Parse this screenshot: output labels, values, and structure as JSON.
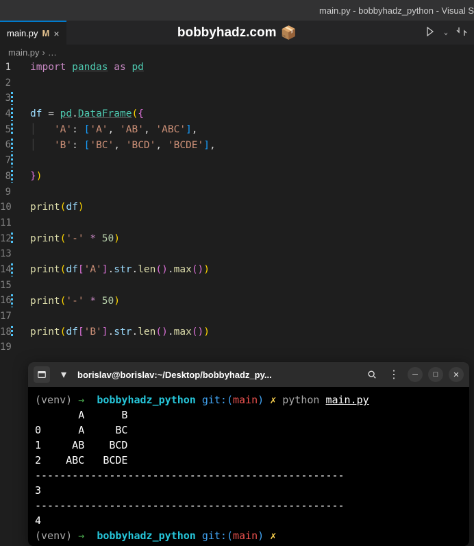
{
  "title_bar": "main.py - bobbyhadz_python - Visual S",
  "tab": {
    "name": "main.py",
    "modified_marker": "M",
    "close": "×"
  },
  "watermark": {
    "text": "bobbyhadz.com",
    "icon": "📦"
  },
  "breadcrumb": {
    "file": "main.py",
    "sep": "›",
    "more": "…"
  },
  "code": {
    "lines": [
      {
        "n": 1,
        "active": true,
        "mod": false
      },
      {
        "n": 2,
        "mod": false
      },
      {
        "n": 3,
        "mod": true
      },
      {
        "n": 4,
        "mod": true
      },
      {
        "n": 5,
        "mod": true
      },
      {
        "n": 6,
        "mod": true
      },
      {
        "n": 7,
        "mod": true
      },
      {
        "n": 8,
        "mod": true
      },
      {
        "n": 9,
        "mod": false
      },
      {
        "n": 10,
        "mod": false
      },
      {
        "n": 11,
        "mod": false
      },
      {
        "n": 12,
        "mod": true
      },
      {
        "n": 13,
        "mod": false
      },
      {
        "n": 14,
        "mod": true
      },
      {
        "n": 15,
        "mod": false
      },
      {
        "n": 16,
        "mod": true
      },
      {
        "n": 17,
        "mod": false
      },
      {
        "n": 18,
        "mod": true
      },
      {
        "n": 19,
        "mod": false
      }
    ],
    "tokens": {
      "l1": {
        "import": "import",
        "pandas": "pandas",
        "as": "as",
        "pd": "pd"
      },
      "l4": {
        "df": "df",
        "eq": "=",
        "pd": "pd",
        "dot": ".",
        "DataFrame": "DataFrame",
        "op": "(",
        "ob": "{"
      },
      "l5": {
        "kA": "'A'",
        "colon": ":",
        "ob": "[",
        "a1": "'A'",
        "c": ",",
        "a2": "'AB'",
        "a3": "'ABC'",
        "cb": "]"
      },
      "l6": {
        "kB": "'B'",
        "colon": ":",
        "ob": "[",
        "b1": "'BC'",
        "c": ",",
        "b2": "'BCD'",
        "b3": "'BCDE'",
        "cb": "]"
      },
      "l8": {
        "cb": "}",
        "cp": ")"
      },
      "l10": {
        "print": "print",
        "op": "(",
        "df": "df",
        "cp": ")"
      },
      "l12": {
        "print": "print",
        "op": "(",
        "s": "'-'",
        "mul": "*",
        "n": "50",
        "cp": ")"
      },
      "l14": {
        "print": "print",
        "op": "(",
        "df": "df",
        "ob": "[",
        "k": "'A'",
        "cb": "]",
        "dot": ".",
        "str": "str",
        "len": "len",
        "max": "max",
        "p": "()",
        "cp": ")"
      },
      "l16": {
        "print": "print",
        "op": "(",
        "s": "'-'",
        "mul": "*",
        "n": "50",
        "cp": ")"
      },
      "l18": {
        "print": "print",
        "op": "(",
        "df": "df",
        "ob": "[",
        "k": "'B'",
        "cb": "]",
        "dot": ".",
        "str": "str",
        "len": "len",
        "max": "max",
        "p": "()",
        "cp": ")"
      }
    }
  },
  "terminal": {
    "title": "borislav@borislav:~/Desktop/bobbyhadz_py...",
    "prompt": {
      "venv": "(venv)",
      "arrow": "→",
      "dir": "bobbyhadz_python",
      "git": "git:(",
      "branch": "main",
      "gitc": ")",
      "x": "✗",
      "cmd_py": "python",
      "cmd_file": "main.py"
    },
    "output": {
      "head": "       A      B",
      "r0": "0      A     BC",
      "r1": "1     AB    BCD",
      "r2": "2    ABC   BCDE",
      "sep": "--------------------------------------------------",
      "v1": "3",
      "v2": "4"
    }
  }
}
